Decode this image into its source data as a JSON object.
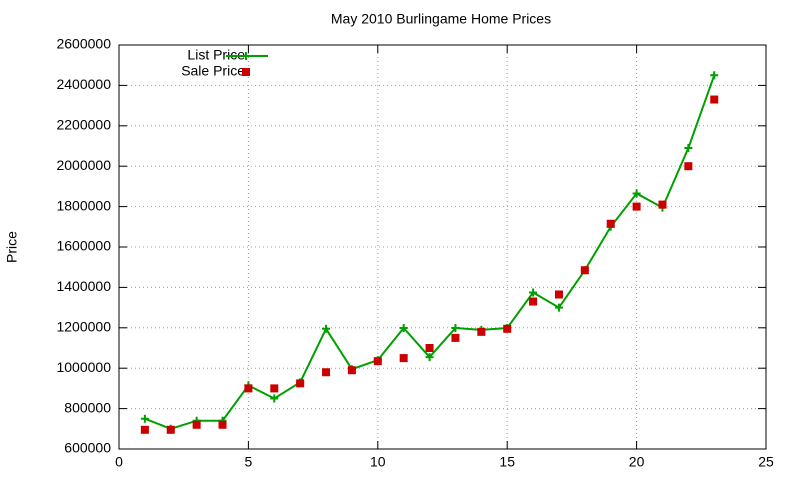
{
  "chart_data": {
    "type": "line",
    "title": "May 2010 Burlingame Home Prices",
    "ylabel": "Price",
    "x": [
      1,
      2,
      3,
      4,
      5,
      6,
      7,
      8,
      9,
      10,
      11,
      12,
      13,
      14,
      15,
      16,
      17,
      18,
      19,
      20,
      21,
      22,
      23
    ],
    "series": [
      {
        "name": "List Price",
        "color": "#00a000",
        "marker": "plus",
        "line": true,
        "values": [
          750000,
          700000,
          740000,
          740000,
          915000,
          850000,
          930000,
          1195000,
          995000,
          1040000,
          1199000,
          1055000,
          1199000,
          1190000,
          1199000,
          1375000,
          1300000,
          1485000,
          1700000,
          1865000,
          1795000,
          2090000,
          2450000
        ]
      },
      {
        "name": "Sale Price",
        "color": "#cc0000",
        "marker": "square",
        "line": false,
        "values": [
          695000,
          695000,
          720000,
          720000,
          900000,
          900000,
          925000,
          980000,
          990000,
          1035000,
          1050000,
          1100000,
          1150000,
          1180000,
          1195000,
          1330000,
          1365000,
          1485000,
          1715000,
          1800000,
          1810000,
          2000000,
          2330000
        ]
      }
    ],
    "xlim": [
      0,
      25
    ],
    "xticks": [
      0,
      5,
      10,
      15,
      20,
      25
    ],
    "ylim": [
      600000,
      2600000
    ],
    "yticks": [
      600000,
      800000,
      1000000,
      1200000,
      1400000,
      1600000,
      1800000,
      2000000,
      2200000,
      2400000,
      2600000
    ],
    "grid": true,
    "legend": "top-left"
  }
}
